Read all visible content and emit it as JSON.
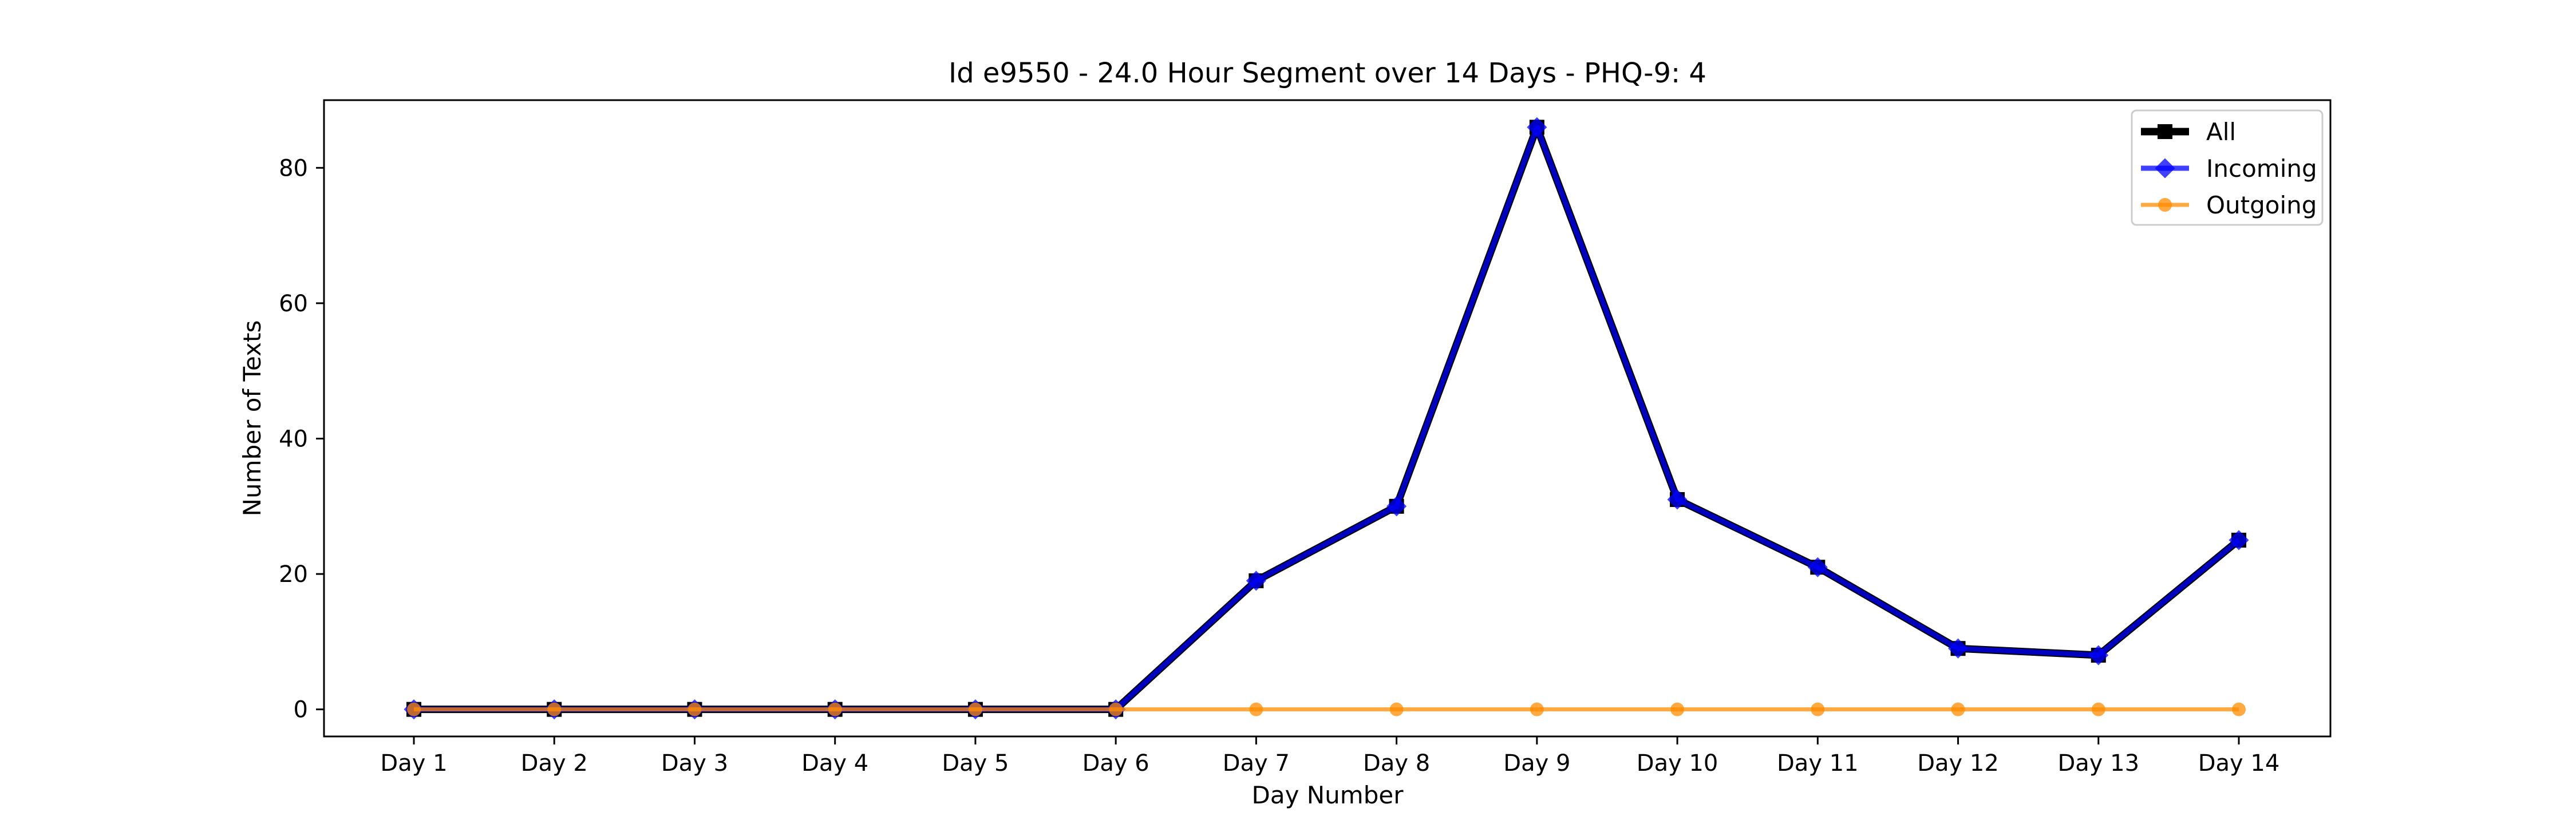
{
  "chart_data": {
    "type": "line",
    "title": "Id e9550 - 24.0 Hour Segment over 14 Days - PHQ-9: 4",
    "xlabel": "Day Number",
    "ylabel": "Number of Texts",
    "categories": [
      "Day 1",
      "Day 2",
      "Day 3",
      "Day 4",
      "Day 5",
      "Day 6",
      "Day 7",
      "Day 8",
      "Day 9",
      "Day 10",
      "Day 11",
      "Day 12",
      "Day 13",
      "Day 14"
    ],
    "ylim": [
      -4,
      90
    ],
    "yticks": [
      0,
      20,
      40,
      60,
      80
    ],
    "grid": false,
    "legend_position": "top-right",
    "series": [
      {
        "name": "All",
        "color": "#000000",
        "marker": "square",
        "values": [
          0,
          0,
          0,
          0,
          0,
          0,
          19,
          30,
          86,
          31,
          21,
          9,
          8,
          25
        ]
      },
      {
        "name": "Incoming",
        "color": "#0000ff",
        "marker": "diamond",
        "values": [
          0,
          0,
          0,
          0,
          0,
          0,
          19,
          30,
          86,
          31,
          21,
          9,
          8,
          25
        ]
      },
      {
        "name": "Outgoing",
        "color": "#ff8c00",
        "marker": "circle",
        "values": [
          0,
          0,
          0,
          0,
          0,
          0,
          0,
          0,
          0,
          0,
          0,
          0,
          0,
          0
        ]
      }
    ]
  }
}
